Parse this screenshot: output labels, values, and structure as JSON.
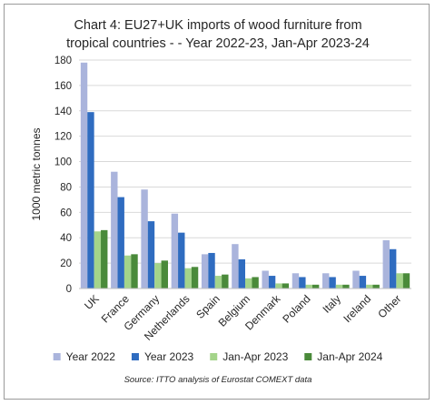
{
  "chart_data": {
    "type": "bar",
    "title_lines": [
      "Chart 4: EU27+UK imports of wood furniture from",
      "tropical countries - - Year 2022-23, Jan-Apr 2023-24"
    ],
    "ylabel": "1000 metric tonnes",
    "xlabel": "",
    "ylim": [
      0,
      180
    ],
    "yticks": [
      0,
      20,
      40,
      60,
      80,
      100,
      120,
      140,
      160,
      180
    ],
    "grid": true,
    "legend_position": "bottom",
    "categories": [
      "UK",
      "France",
      "Germany",
      "Netherlands",
      "Spain",
      "Belgium",
      "Denmark",
      "Poland",
      "Italy",
      "Ireland",
      "Other"
    ],
    "series": [
      {
        "name": "Year 2022",
        "color": "#aab4dc",
        "values": [
          178,
          92,
          78,
          59,
          27,
          35,
          14,
          12,
          12,
          14,
          38
        ]
      },
      {
        "name": "Year 2023",
        "color": "#2f6cc0",
        "values": [
          139,
          72,
          53,
          44,
          28,
          23,
          10,
          9,
          9,
          10,
          31
        ]
      },
      {
        "name": "Jan-Apr 2023",
        "color": "#a4d48a",
        "values": [
          45,
          26,
          20,
          16,
          10,
          8,
          4,
          3,
          3,
          3,
          12
        ]
      },
      {
        "name": "Jan-Apr 2024",
        "color": "#4a8a3a",
        "values": [
          46,
          27,
          22,
          17,
          11,
          9,
          4,
          3,
          3,
          3,
          12
        ]
      }
    ],
    "source": "Source: ITTO analysis of Eurostat COMEXT data"
  }
}
